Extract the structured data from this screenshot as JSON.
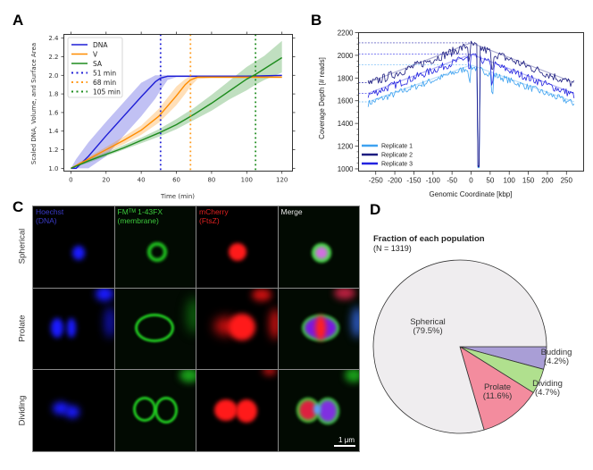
{
  "panels": {
    "A": "A",
    "B": "B",
    "C": "C",
    "D": "D"
  },
  "chart_data": [
    {
      "id": "A",
      "type": "line",
      "title": "",
      "xlabel": "Time (min)",
      "ylabel": "Scaled DNA, Volume, and Surface Area",
      "xlim": [
        -4,
        126
      ],
      "ylim": [
        0.97,
        2.44
      ],
      "xticks": [
        0,
        20,
        40,
        60,
        80,
        100,
        120
      ],
      "yticks": [
        1.0,
        1.2,
        1.4,
        1.6,
        1.8,
        2.0,
        2.2,
        2.4
      ],
      "ytick_labels": [
        "1.0",
        "1.2",
        "1.4",
        "1.6",
        "1.8",
        "2.0",
        "2.2",
        "2.4"
      ],
      "legend_position": "top-left",
      "series": [
        {
          "name": "DNA",
          "color": "#1f1fd6",
          "style": "solid",
          "x": [
            0,
            3,
            10,
            20,
            30,
            40,
            48,
            51,
            55,
            60,
            80,
            100,
            120
          ],
          "y": [
            1.0,
            1.0,
            1.13,
            1.35,
            1.56,
            1.77,
            1.93,
            1.97,
            1.99,
            1.99,
            1.99,
            1.99,
            2.0
          ],
          "band_low": [
            1.0,
            1.0,
            1.0,
            1.13,
            1.35,
            1.56,
            1.75,
            1.84,
            1.95,
            1.98,
            1.98,
            1.98,
            1.99
          ],
          "band_high": [
            1.0,
            1.1,
            1.28,
            1.5,
            1.71,
            1.92,
            2.0,
            2.0,
            2.0,
            2.0,
            2.0,
            2.0,
            2.0
          ]
        },
        {
          "name": "V",
          "color": "#ff8c00",
          "style": "solid",
          "x": [
            0,
            5,
            10,
            20,
            30,
            40,
            50,
            60,
            65,
            68,
            72,
            80,
            100,
            120
          ],
          "y": [
            1.0,
            1.05,
            1.1,
            1.2,
            1.3,
            1.41,
            1.56,
            1.78,
            1.9,
            1.95,
            1.98,
            1.98,
            1.98,
            1.98
          ],
          "band_low": [
            1.0,
            1.03,
            1.07,
            1.17,
            1.26,
            1.36,
            1.49,
            1.68,
            1.8,
            1.88,
            1.96,
            1.97,
            1.97,
            1.97
          ],
          "band_high": [
            1.0,
            1.07,
            1.12,
            1.23,
            1.34,
            1.46,
            1.64,
            1.88,
            1.96,
            1.99,
            1.99,
            1.99,
            1.99,
            1.99
          ]
        },
        {
          "name": "SA",
          "color": "#1e8c1e",
          "style": "solid",
          "x": [
            0,
            10,
            20,
            30,
            40,
            50,
            60,
            70,
            80,
            90,
            100,
            105,
            110,
            120
          ],
          "y": [
            1.0,
            1.08,
            1.15,
            1.22,
            1.3,
            1.38,
            1.47,
            1.58,
            1.7,
            1.83,
            1.96,
            2.01,
            2.07,
            2.19
          ],
          "band_low": [
            1.0,
            1.06,
            1.13,
            1.2,
            1.27,
            1.34,
            1.42,
            1.52,
            1.62,
            1.74,
            1.84,
            1.9,
            1.95,
            2.03
          ],
          "band_high": [
            1.0,
            1.1,
            1.17,
            1.25,
            1.33,
            1.42,
            1.53,
            1.65,
            1.79,
            1.94,
            2.09,
            2.15,
            2.21,
            2.37
          ]
        }
      ],
      "vlines": [
        {
          "name": "51 min",
          "x": 51,
          "color": "#1f1fd6"
        },
        {
          "name": "68 min",
          "x": 68,
          "color": "#ff9a1a"
        },
        {
          "name": "105 min",
          "x": 105,
          "color": "#1e8c1e"
        }
      ]
    },
    {
      "id": "B",
      "type": "line",
      "title": "",
      "xlabel": "Genomic Coordinate [kbp]",
      "ylabel": "Coverage Depth [# reads]",
      "xlim": [
        -295,
        295
      ],
      "ylim": [
        980,
        2200
      ],
      "xticks": [
        -250,
        -200,
        -150,
        -100,
        -50,
        0,
        50,
        100,
        150,
        200,
        250
      ],
      "yticks": [
        1000,
        1200,
        1400,
        1600,
        1800,
        2000,
        2200
      ],
      "legend_position": "bottom-left",
      "series": [
        {
          "name": "Replicate 1",
          "color": "#3ea2f0",
          "x_range": [
            -270,
            270
          ],
          "left_level": 1590,
          "peak": 1915,
          "right_level": 1590,
          "noise": 30
        },
        {
          "name": "Replicate 2",
          "color": "#1c1c80",
          "x_range": [
            -270,
            270
          ],
          "left_level": 1760,
          "peak": 2110,
          "right_level": 1760,
          "noise": 40
        },
        {
          "name": "Replicate 3",
          "color": "#2323e0",
          "x_range": [
            -270,
            270
          ],
          "left_level": 1665,
          "peak": 2010,
          "right_level": 1665,
          "noise": 35
        }
      ],
      "annotations": {
        "dip_x": 20,
        "dip_min": 1010,
        "secondary_dip_x": 55,
        "dashed_reference_levels": [
          2110,
          2010,
          1915,
          1760,
          1665,
          1590
        ]
      }
    },
    {
      "id": "D",
      "type": "pie",
      "title": "Fraction of each population",
      "subtitle": "(N = 1319)",
      "slices": [
        {
          "label": "Budding",
          "pct_label": "(4.2%)",
          "value": 4.2,
          "color": "#a99ed6"
        },
        {
          "label": "Dividing",
          "pct_label": "(4.7%)",
          "value": 4.7,
          "color": "#b0e08e"
        },
        {
          "label": "Prolate",
          "pct_label": "(11.6%)",
          "value": 11.6,
          "color": "#f38c9e"
        },
        {
          "label": "Spherical",
          "pct_label": "(79.5%)",
          "value": 79.5,
          "color": "#efedef"
        }
      ]
    }
  ],
  "microscopy": {
    "columns": [
      {
        "line1": "Hoechst",
        "line2": "(DNA)",
        "color": "#3a3ac8"
      },
      {
        "line1": "FMᵀᴹ 1-43FX",
        "line2": "(membrane)",
        "color": "#3cc83c"
      },
      {
        "line1": "mCherry",
        "line2": "(FtsZ)",
        "color": "#e02020"
      },
      {
        "line1": "Merge",
        "line2": "",
        "color": "#e8e8e8"
      }
    ],
    "rows": [
      "Spherical",
      "Prolate",
      "Dividing"
    ],
    "scalebar": "1 μm"
  }
}
